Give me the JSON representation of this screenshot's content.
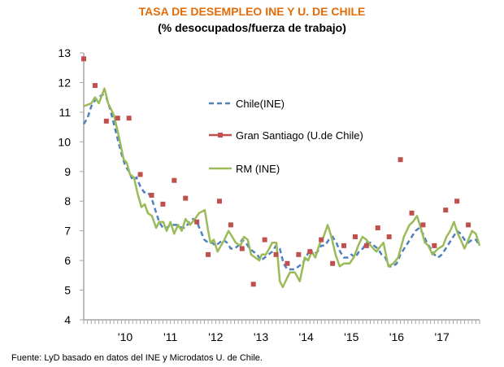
{
  "chart_data": {
    "type": "line",
    "title": "TASA  DE  DESEMPLEO INE Y U. DE CHILE",
    "subtitle": "(% desocupados/fuerza de trabajo)",
    "xlabel": "",
    "ylabel": "",
    "ylim": [
      4,
      13
    ],
    "yticks": [
      4,
      5,
      6,
      7,
      8,
      9,
      10,
      11,
      12,
      13
    ],
    "x_unit": "months since Feb 2009",
    "xlim": [
      0,
      105
    ],
    "xtick_labels": [
      {
        "label": "'10",
        "x": 11
      },
      {
        "label": "'11",
        "x": 23
      },
      {
        "label": "'12",
        "x": 35
      },
      {
        "label": "'13",
        "x": 47
      },
      {
        "label": "'14",
        "x": 59
      },
      {
        "label": "'15",
        "x": 71
      },
      {
        "label": "'16",
        "x": 83
      },
      {
        "label": "'17",
        "x": 95
      }
    ],
    "legend_position": "center",
    "grid": false,
    "series": [
      {
        "name": "Chile(INE)",
        "style": "dashed",
        "color": "#4F81BD",
        "points": [
          [
            0,
            10.6
          ],
          [
            1,
            10.8
          ],
          [
            2,
            11.2
          ],
          [
            3,
            11.4
          ],
          [
            4,
            11.5
          ],
          [
            5,
            11.6
          ],
          [
            6,
            11.5
          ],
          [
            7,
            11.1
          ],
          [
            8,
            10.6
          ],
          [
            9,
            10.1
          ],
          [
            10,
            9.6
          ],
          [
            11,
            9.2
          ],
          [
            12,
            9.0
          ],
          [
            13,
            8.7
          ],
          [
            14,
            8.8
          ],
          [
            15,
            8.5
          ],
          [
            16,
            8.3
          ],
          [
            17,
            8.3
          ],
          [
            18,
            8.1
          ],
          [
            19,
            7.7
          ],
          [
            20,
            7.3
          ],
          [
            21,
            7.1
          ],
          [
            22,
            7.1
          ],
          [
            23,
            7.2
          ],
          [
            24,
            7.2
          ],
          [
            25,
            7.2
          ],
          [
            26,
            7.1
          ],
          [
            27,
            7.1
          ],
          [
            28,
            7.3
          ],
          [
            29,
            7.4
          ],
          [
            30,
            7.3
          ],
          [
            31,
            7.0
          ],
          [
            32,
            6.7
          ],
          [
            33,
            6.6
          ],
          [
            34,
            6.6
          ],
          [
            35,
            6.5
          ],
          [
            36,
            6.6
          ],
          [
            37,
            6.7
          ],
          [
            38,
            6.6
          ],
          [
            39,
            6.4
          ],
          [
            40,
            6.4
          ],
          [
            41,
            6.5
          ],
          [
            42,
            6.7
          ],
          [
            43,
            6.6
          ],
          [
            44,
            6.4
          ],
          [
            45,
            6.3
          ],
          [
            46,
            6.2
          ],
          [
            47,
            6.0
          ],
          [
            48,
            6.1
          ],
          [
            49,
            6.2
          ],
          [
            50,
            6.3
          ],
          [
            51,
            6.5
          ],
          [
            52,
            6.4
          ],
          [
            53,
            5.9
          ],
          [
            54,
            5.7
          ],
          [
            55,
            5.7
          ],
          [
            56,
            5.7
          ],
          [
            57,
            5.8
          ],
          [
            58,
            5.9
          ],
          [
            59,
            6.1
          ],
          [
            60,
            6.4
          ],
          [
            61,
            6.2
          ],
          [
            62,
            6.3
          ],
          [
            63,
            6.5
          ],
          [
            64,
            6.5
          ],
          [
            65,
            6.7
          ],
          [
            66,
            6.8
          ],
          [
            67,
            6.6
          ],
          [
            68,
            6.3
          ],
          [
            69,
            6.1
          ],
          [
            70,
            6.1
          ],
          [
            71,
            6.2
          ],
          [
            72,
            6.1
          ],
          [
            73,
            6.3
          ],
          [
            74,
            6.4
          ],
          [
            75,
            6.6
          ],
          [
            76,
            6.6
          ],
          [
            77,
            6.5
          ],
          [
            78,
            6.4
          ],
          [
            79,
            6.2
          ],
          [
            80,
            6.1
          ],
          [
            81,
            5.8
          ],
          [
            82,
            5.8
          ],
          [
            83,
            5.9
          ],
          [
            84,
            6.2
          ],
          [
            85,
            6.4
          ],
          [
            86,
            6.6
          ],
          [
            87,
            6.8
          ],
          [
            88,
            7.0
          ],
          [
            89,
            7.1
          ],
          [
            90,
            6.9
          ],
          [
            91,
            6.6
          ],
          [
            92,
            6.4
          ],
          [
            93,
            6.2
          ],
          [
            94,
            6.1
          ],
          [
            95,
            6.2
          ],
          [
            96,
            6.4
          ],
          [
            97,
            6.6
          ],
          [
            98,
            6.8
          ],
          [
            99,
            7.0
          ],
          [
            100,
            6.9
          ],
          [
            101,
            6.7
          ],
          [
            102,
            6.6
          ],
          [
            103,
            6.7
          ],
          [
            104,
            6.7
          ],
          [
            105,
            6.5
          ]
        ]
      },
      {
        "name": "Gran  Santiago (U.de Chile)",
        "style": "markers",
        "color": "#C0504D",
        "points": [
          [
            0,
            12.8
          ],
          [
            3,
            11.9
          ],
          [
            6,
            10.7
          ],
          [
            9,
            10.8
          ],
          [
            12,
            10.8
          ],
          [
            15,
            8.9
          ],
          [
            18,
            8.2
          ],
          [
            21,
            7.9
          ],
          [
            24,
            8.7
          ],
          [
            27,
            8.1
          ],
          [
            30,
            7.3
          ],
          [
            33,
            6.2
          ],
          [
            36,
            8.0
          ],
          [
            39,
            7.2
          ],
          [
            42,
            6.4
          ],
          [
            45,
            5.2
          ],
          [
            48,
            6.7
          ],
          [
            51,
            6.2
          ],
          [
            54,
            5.9
          ],
          [
            57,
            6.2
          ],
          [
            60,
            6.3
          ],
          [
            63,
            6.7
          ],
          [
            66,
            5.9
          ],
          [
            69,
            6.5
          ],
          [
            72,
            6.8
          ],
          [
            75,
            6.5
          ],
          [
            78,
            7.1
          ],
          [
            81,
            6.8
          ],
          [
            84,
            9.4
          ],
          [
            87,
            7.6
          ],
          [
            90,
            7.2
          ],
          [
            93,
            6.5
          ],
          [
            96,
            7.7
          ],
          [
            99,
            8.0
          ],
          [
            102,
            7.2
          ]
        ]
      },
      {
        "name": "RM (INE)",
        "style": "solid",
        "color": "#9BBB59",
        "points": [
          [
            0,
            11.2
          ],
          [
            2,
            11.3
          ],
          [
            3,
            11.5
          ],
          [
            4,
            11.3
          ],
          [
            5.5,
            11.8
          ],
          [
            6.5,
            11.3
          ],
          [
            8,
            10.9
          ],
          [
            9.3,
            10.2
          ],
          [
            10.6,
            9.4
          ],
          [
            11.4,
            9.3
          ],
          [
            12.3,
            8.9
          ],
          [
            13.3,
            8.8
          ],
          [
            14.4,
            8.2
          ],
          [
            15.3,
            7.8
          ],
          [
            16.2,
            7.9
          ],
          [
            17,
            7.6
          ],
          [
            18.1,
            7.5
          ],
          [
            19.2,
            7.1
          ],
          [
            20,
            7.3
          ],
          [
            21.1,
            7.3
          ],
          [
            22,
            7.0
          ],
          [
            23,
            7.3
          ],
          [
            24,
            6.9
          ],
          [
            25,
            7.2
          ],
          [
            26,
            7.0
          ],
          [
            27,
            7.4
          ],
          [
            28.2,
            7.2
          ],
          [
            29.5,
            7.4
          ],
          [
            30.6,
            7.6
          ],
          [
            32.1,
            7.7
          ],
          [
            33,
            7.0
          ],
          [
            33.6,
            6.6
          ],
          [
            34.5,
            6.7
          ],
          [
            35.5,
            6.3
          ],
          [
            36.4,
            6.5
          ],
          [
            37.3,
            6.7
          ],
          [
            38.4,
            7.0
          ],
          [
            39.4,
            6.8
          ],
          [
            40.3,
            6.6
          ],
          [
            41.6,
            6.5
          ],
          [
            42.5,
            6.8
          ],
          [
            43.5,
            6.7
          ],
          [
            44.4,
            6.2
          ],
          [
            45.5,
            6.1
          ],
          [
            46.6,
            6.0
          ],
          [
            47.2,
            6.2
          ],
          [
            48.3,
            6.2
          ],
          [
            49.2,
            6.4
          ],
          [
            50,
            6.6
          ],
          [
            51.1,
            6.6
          ],
          [
            52,
            5.3
          ],
          [
            52.8,
            5.1
          ],
          [
            53.9,
            5.4
          ],
          [
            54.7,
            5.6
          ],
          [
            56,
            5.6
          ],
          [
            57.3,
            5.3
          ],
          [
            58.6,
            6.1
          ],
          [
            59.5,
            6.0
          ],
          [
            60.5,
            6.3
          ],
          [
            61.4,
            6.1
          ],
          [
            62.7,
            6.6
          ],
          [
            63.6,
            6.8
          ],
          [
            64.7,
            7.2
          ],
          [
            65.7,
            6.8
          ],
          [
            66.8,
            6.2
          ],
          [
            67.9,
            5.8
          ],
          [
            69,
            5.9
          ],
          [
            70.5,
            5.9
          ],
          [
            71.6,
            6.1
          ],
          [
            72.8,
            6.5
          ],
          [
            73.9,
            6.8
          ],
          [
            75,
            6.7
          ],
          [
            76.1,
            6.5
          ],
          [
            77.6,
            6.3
          ],
          [
            79.5,
            6.6
          ],
          [
            80.8,
            5.8
          ],
          [
            82.1,
            5.9
          ],
          [
            83.4,
            6.1
          ],
          [
            84.9,
            6.8
          ],
          [
            86.4,
            7.2
          ],
          [
            87.3,
            7.3
          ],
          [
            88.4,
            7.5
          ],
          [
            89.4,
            7.1
          ],
          [
            90.5,
            6.6
          ],
          [
            91.4,
            6.5
          ],
          [
            92.5,
            6.2
          ],
          [
            94,
            6.4
          ],
          [
            95.3,
            6.5
          ],
          [
            96.2,
            6.8
          ],
          [
            97.2,
            7.0
          ],
          [
            98.2,
            7.3
          ],
          [
            99.2,
            6.9
          ],
          [
            100,
            6.7
          ],
          [
            101,
            6.4
          ],
          [
            102,
            6.7
          ],
          [
            103,
            7.0
          ],
          [
            104,
            6.9
          ],
          [
            105,
            6.5
          ]
        ]
      }
    ]
  },
  "footer": {
    "source": "Fuente: LyD basado en datos del INE y Microdatos U. de Chile."
  }
}
